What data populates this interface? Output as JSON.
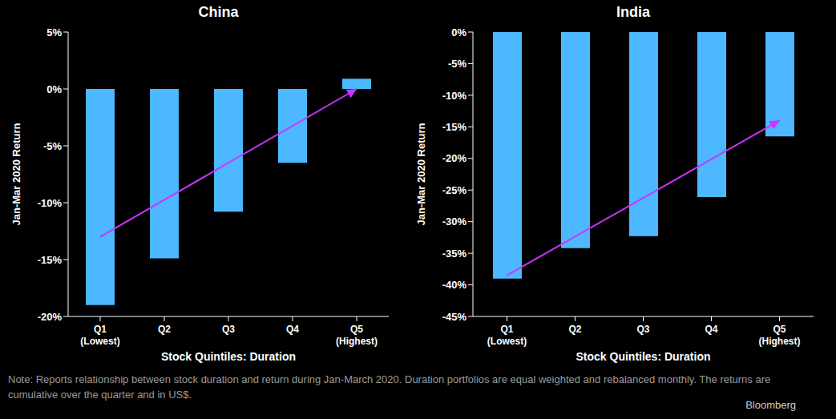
{
  "chart_data": [
    {
      "type": "bar",
      "title": "China",
      "x_label": "Stock Quintiles: Duration",
      "y_label": "Jan-Mar 2020 Return",
      "categories": [
        "Q1\n(Lowest)",
        "Q2",
        "Q3",
        "Q4",
        "Q5\n(Highest)"
      ],
      "values": [
        -19,
        -14.9,
        -10.8,
        -6.5,
        0.9
      ],
      "color": "#4db8ff",
      "ylim": [
        -20,
        5
      ],
      "yticks": [
        {
          "value": -20,
          "label": "-20%"
        },
        {
          "value": -15,
          "label": "-15%"
        },
        {
          "value": -10,
          "label": "-10%"
        },
        {
          "value": -5,
          "label": "-5%"
        },
        {
          "value": 0,
          "label": "0%"
        },
        {
          "value": 5,
          "label": "5%"
        }
      ],
      "grid": false,
      "trend_line": {
        "values": [
          -13,
          null,
          null,
          null,
          0
        ],
        "color": "#cc33ff"
      }
    },
    {
      "type": "bar",
      "title": "India",
      "x_label": "Stock Quintiles: Duration",
      "y_label": "Jan-Mar 2020 Return",
      "categories": [
        "Q1\n(Lowest)",
        "Q2",
        "Q3",
        "Q4",
        "Q5\n(Highest)"
      ],
      "values": [
        -39,
        -34.2,
        -32.3,
        -26.1,
        -16.5
      ],
      "color": "#4db8ff",
      "ylim": [
        -45,
        0
      ],
      "yticks": [
        {
          "value": -45,
          "label": "-45%"
        },
        {
          "value": -40,
          "label": "-40%"
        },
        {
          "value": -35,
          "label": "-35%"
        },
        {
          "value": -30,
          "label": "-30%"
        },
        {
          "value": -25,
          "label": "-25%"
        },
        {
          "value": -20,
          "label": "-20%"
        },
        {
          "value": -15,
          "label": "-15%"
        },
        {
          "value": -10,
          "label": "-10%"
        },
        {
          "value": -5,
          "label": "-5%"
        },
        {
          "value": 0,
          "label": "0%"
        }
      ],
      "grid": false,
      "trend_line": {
        "values": [
          -38.5,
          null,
          null,
          null,
          -14
        ],
        "color": "#cc33ff"
      }
    }
  ],
  "note": "Note: Reports relationship between stock duration and return during Jan-March 2020.  Duration portfolios are equal weighted and rebalanced monthly. The returns are cumulative over the quarter and in US$.",
  "source": "Bloomberg"
}
